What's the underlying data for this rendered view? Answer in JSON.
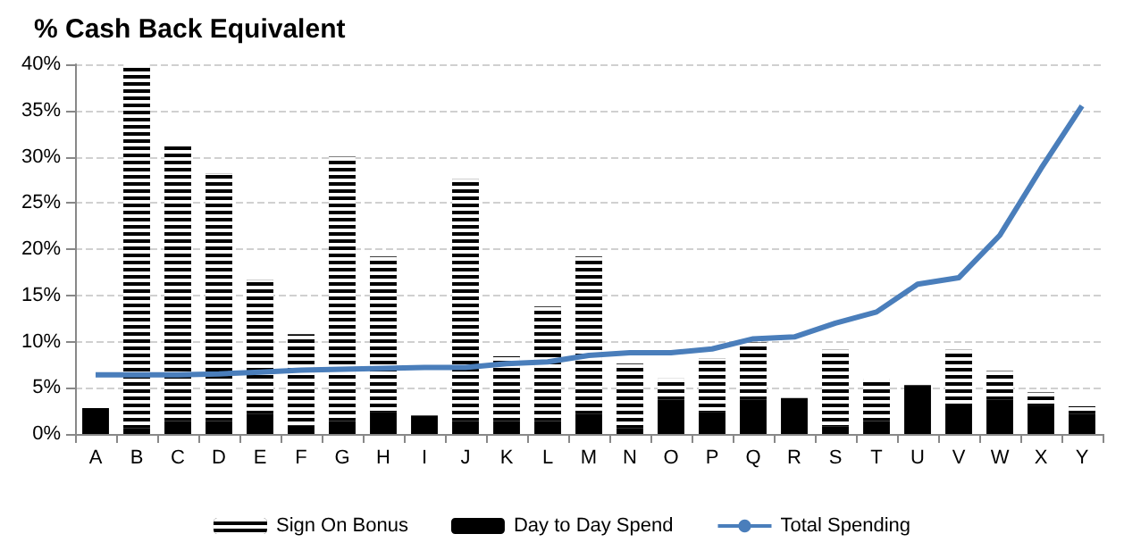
{
  "chart_data": {
    "type": "bar",
    "title": "% Cash Back Equivalent",
    "categories": [
      "A",
      "B",
      "C",
      "D",
      "E",
      "F",
      "G",
      "H",
      "I",
      "J",
      "K",
      "L",
      "M",
      "N",
      "O",
      "P",
      "Q",
      "R",
      "S",
      "T",
      "U",
      "V",
      "W",
      "X",
      "Y"
    ],
    "stacked": true,
    "series": [
      {
        "name": "Day to Day Spend",
        "color": "#000000",
        "values": [
          2.8,
          0.6,
          1.4,
          1.4,
          2.2,
          0.9,
          1.4,
          2.4,
          2.0,
          1.4,
          1.4,
          1.4,
          2.2,
          0.6,
          3.7,
          2.4,
          3.7,
          3.9,
          0.8,
          1.4,
          5.3,
          3.0,
          3.7,
          3.0,
          2.2
        ]
      },
      {
        "name": "Sign On Bonus",
        "color": "#000000",
        "values": [
          0,
          39.4,
          29.9,
          26.8,
          14.5,
          9.9,
          28.6,
          16.8,
          0,
          26.2,
          7.0,
          12.4,
          17.0,
          7.0,
          2.3,
          5.8,
          6.2,
          0,
          8.3,
          4.6,
          0,
          6.1,
          3.1,
          1.5,
          0.8
        ]
      },
      {
        "name": "Total Spending",
        "type": "line",
        "color": "#4a7ebb",
        "values": [
          6.4,
          6.4,
          6.4,
          6.5,
          6.7,
          6.9,
          7.0,
          7.1,
          7.2,
          7.2,
          7.6,
          7.8,
          8.5,
          8.8,
          8.8,
          9.2,
          10.3,
          10.5,
          12.0,
          13.2,
          16.2,
          16.9,
          21.5,
          28.7,
          35.5
        ]
      }
    ],
    "ylim": [
      0,
      40
    ],
    "yticks": [
      {
        "value": 0,
        "label": "0%"
      },
      {
        "value": 5,
        "label": "5%"
      },
      {
        "value": 10,
        "label": "10%"
      },
      {
        "value": 15,
        "label": "15%"
      },
      {
        "value": 20,
        "label": "20%"
      },
      {
        "value": 25,
        "label": "25%"
      },
      {
        "value": 30,
        "label": "30%"
      },
      {
        "value": 35,
        "label": "35%"
      },
      {
        "value": 40,
        "label": "40%"
      }
    ],
    "grid": "y",
    "legend": "bottom",
    "marker": "none"
  }
}
